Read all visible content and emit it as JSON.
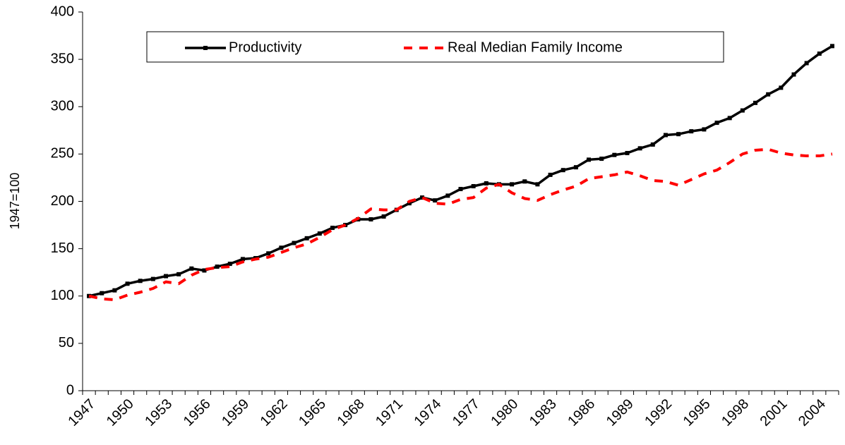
{
  "chart_data": {
    "type": "line",
    "y_label": "1947=100",
    "categories": [
      "1947",
      null,
      null,
      "1950",
      null,
      null,
      "1953",
      null,
      null,
      "1956",
      null,
      null,
      "1959",
      null,
      null,
      "1962",
      null,
      null,
      "1965",
      null,
      null,
      "1968",
      null,
      null,
      "1971",
      null,
      null,
      "1974",
      null,
      null,
      "1977",
      null,
      null,
      "1980",
      null,
      null,
      "1983",
      null,
      null,
      "1986",
      null,
      null,
      "1989",
      null,
      null,
      "1992",
      null,
      null,
      "1995",
      null,
      null,
      "1998",
      null,
      null,
      "2001",
      null,
      null,
      "2004",
      null
    ],
    "series": [
      {
        "name": "Productivity",
        "color": "#000000",
        "dash": false,
        "marker": "square",
        "values": [
          100,
          103,
          106,
          113,
          116,
          118,
          121,
          123,
          129,
          127,
          131,
          134,
          139,
          140,
          145,
          151,
          156,
          161,
          166,
          172,
          175,
          181,
          181,
          184,
          191,
          198,
          204,
          201,
          206,
          213,
          216,
          219,
          218,
          218,
          221,
          218,
          228,
          233,
          236,
          244,
          245,
          249,
          251,
          256,
          260,
          270,
          271,
          274,
          276,
          283,
          288,
          296,
          304,
          313,
          320,
          334,
          346,
          356,
          364
        ]
      },
      {
        "name": "Real Median Family Income",
        "color": "#ff0000",
        "dash": true,
        "marker": null,
        "values": [
          100,
          97,
          96,
          101,
          104,
          108,
          115,
          113,
          122,
          128,
          130,
          131,
          136,
          139,
          141,
          146,
          151,
          155,
          162,
          170,
          175,
          182,
          192,
          191,
          191,
          200,
          204,
          198,
          197,
          202,
          204,
          214,
          218,
          209,
          203,
          201,
          207,
          212,
          216,
          224,
          226,
          228,
          231,
          227,
          222,
          221,
          217,
          223,
          229,
          233,
          241,
          250,
          254,
          255,
          251,
          249,
          248,
          248,
          250
        ]
      }
    ],
    "ylim": [
      0,
      400
    ],
    "yticks": [
      0,
      50,
      100,
      150,
      200,
      250,
      300,
      350,
      400
    ],
    "grid": false
  }
}
